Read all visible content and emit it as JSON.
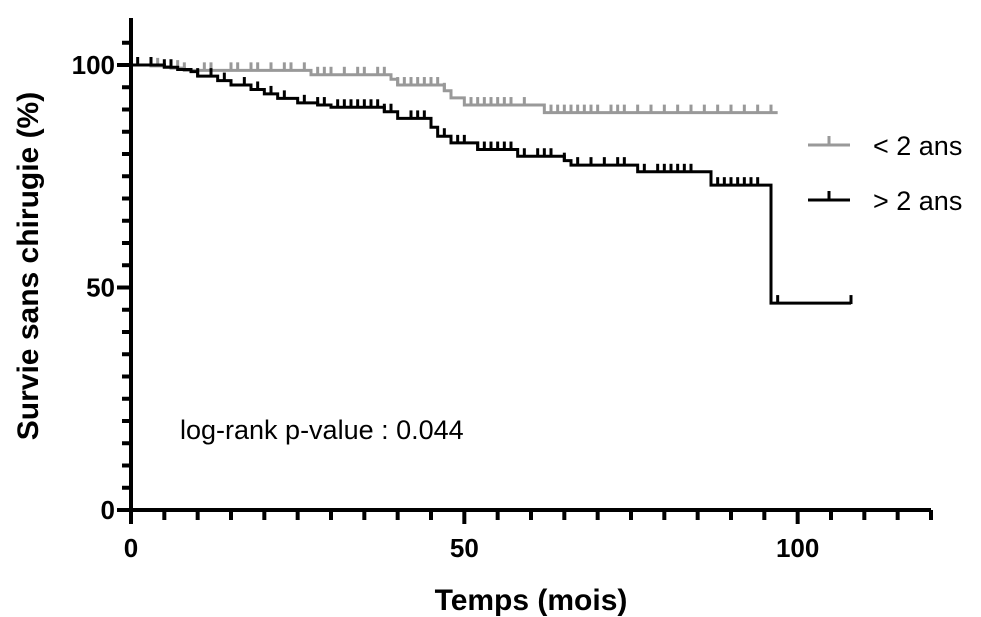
{
  "chart_data": {
    "type": "line",
    "xlabel": "Temps (mois)",
    "ylabel": "Survie sans chirugie (%)",
    "xlim": [
      0,
      120
    ],
    "ylim": [
      0,
      105
    ],
    "x_ticks": [
      0,
      50,
      100
    ],
    "y_ticks": [
      0,
      50,
      100
    ],
    "grid": false,
    "legend_position": "right",
    "annotation": "log-rank p-value : 0.044",
    "series": [
      {
        "name": "< 2 ans",
        "color": "#999999",
        "x": [
          0,
          2,
          3,
          5,
          6,
          8,
          25,
          27,
          39,
          40,
          47,
          48,
          50,
          62,
          97
        ],
        "y": [
          100,
          100,
          99.8,
          99.6,
          99.3,
          98.8,
          98.8,
          97.8,
          96.8,
          95.5,
          94.2,
          92.6,
          91.0,
          89.3,
          89.3
        ],
        "censored_x": [
          3,
          4,
          7,
          8,
          11,
          12,
          15,
          16,
          18,
          19,
          21,
          23,
          24,
          26,
          28,
          29,
          30,
          32,
          34,
          35,
          37,
          38,
          40,
          41,
          42,
          43,
          44,
          45,
          46,
          47,
          48,
          51,
          52,
          53,
          54,
          55,
          56,
          57,
          59,
          63,
          64,
          65,
          66,
          67,
          68,
          69,
          70,
          72,
          73,
          74,
          76,
          78,
          80,
          82,
          84,
          86,
          88,
          90,
          92,
          94,
          96
        ]
      },
      {
        "name": "> 2 ans",
        "color": "#000000",
        "x": [
          0,
          5,
          7,
          9,
          10,
          13,
          15,
          18,
          20,
          22,
          25,
          28,
          30,
          38,
          40,
          45,
          46,
          48,
          52,
          58,
          65,
          66,
          76,
          87,
          96,
          108
        ],
        "y": [
          100,
          99.5,
          99,
          98.5,
          97.5,
          96.5,
          95.5,
          94.5,
          93.5,
          92.5,
          91.5,
          91.0,
          90.5,
          89.5,
          88.0,
          86.0,
          84.0,
          82.5,
          81.0,
          79.5,
          78.5,
          77.5,
          76.0,
          73.0,
          46.5,
          46.5
        ],
        "censored_x": [
          1,
          3,
          5,
          6,
          10,
          12,
          14,
          17,
          19,
          21,
          23,
          26,
          28,
          29,
          31,
          32,
          33,
          34,
          35,
          36,
          37,
          38,
          39,
          42,
          43,
          44,
          47,
          48,
          49,
          50,
          52,
          53,
          54,
          55,
          56,
          57,
          59,
          61,
          62,
          63,
          65,
          67,
          69,
          71,
          73,
          74,
          77,
          79,
          80,
          81,
          82,
          83,
          84,
          88,
          89,
          90,
          91,
          92,
          93,
          94,
          97,
          108
        ]
      }
    ]
  }
}
